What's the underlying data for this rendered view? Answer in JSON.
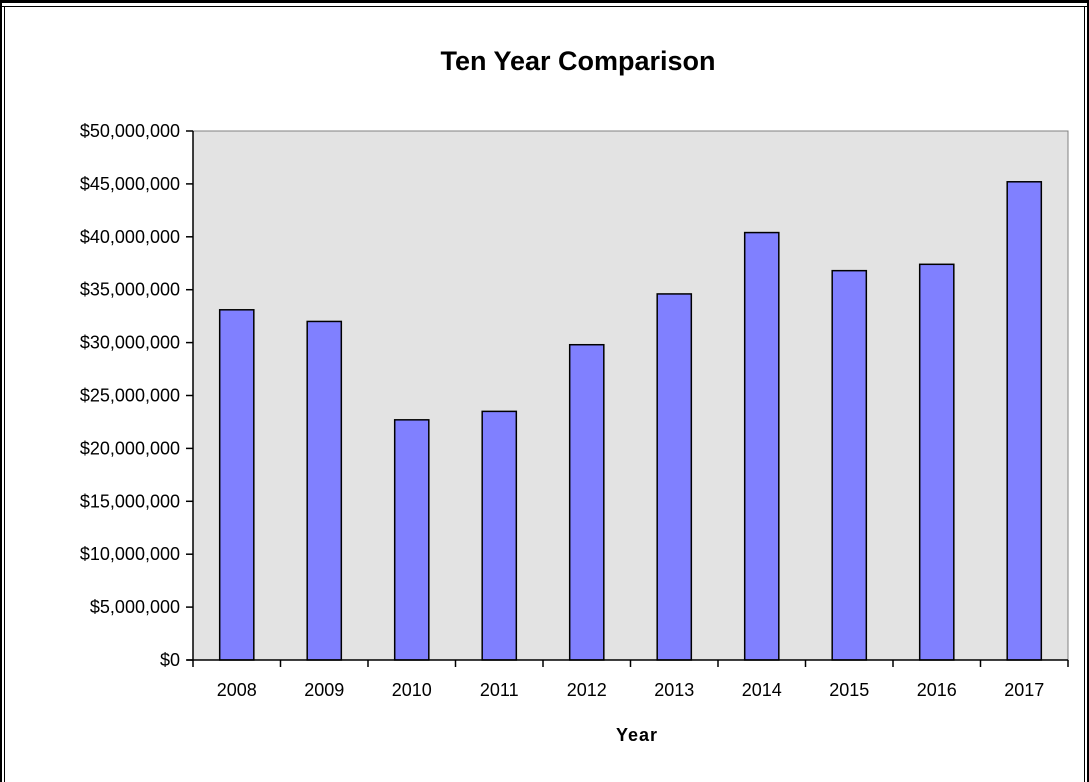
{
  "chart_data": {
    "type": "bar",
    "title": "Ten Year Comparison",
    "xlabel": "Year",
    "ylabel": "",
    "categories": [
      "2008",
      "2009",
      "2010",
      "2011",
      "2012",
      "2013",
      "2014",
      "2015",
      "2016",
      "2017"
    ],
    "values": [
      33100000,
      32000000,
      22700000,
      23500000,
      29800000,
      34600000,
      40400000,
      36800000,
      37400000,
      45200000
    ],
    "ylim": [
      0,
      50000000
    ],
    "yticks": [
      0,
      5000000,
      10000000,
      15000000,
      20000000,
      25000000,
      30000000,
      35000000,
      40000000,
      45000000,
      50000000
    ],
    "ytick_labels": [
      "$0",
      "$5,000,000",
      "$10,000,000",
      "$15,000,000",
      "$20,000,000",
      "$25,000,000",
      "$30,000,000",
      "$35,000,000",
      "$40,000,000",
      "$45,000,000",
      "$50,000,000"
    ],
    "grid": false,
    "legend": "none",
    "colors": {
      "bar_fill": "#8080ff",
      "bar_stroke": "#000000",
      "plot_background": "#e3e3e3"
    }
  }
}
